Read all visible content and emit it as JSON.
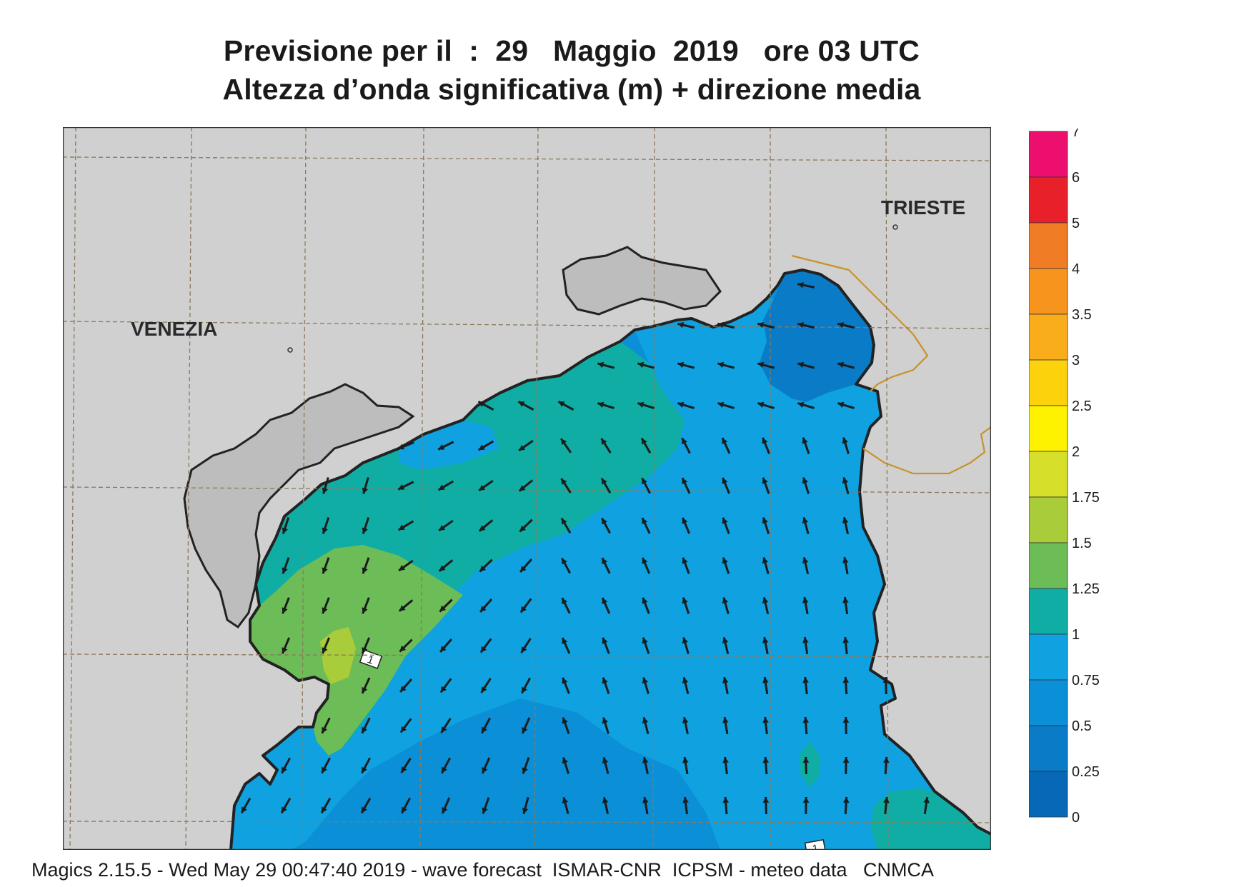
{
  "title_line1": "Previsione per il  :  29   Maggio  2019   ore 03 UTC",
  "title_line2": "Altezza d’onda significativa (m) + direzione media",
  "cities": {
    "venezia": "VENEZIA",
    "trieste": "TRIESTE"
  },
  "contour_labels": [
    "1",
    "1"
  ],
  "legend": {
    "labels": [
      "7",
      "6",
      "5",
      "4",
      "3.5",
      "3",
      "2.5",
      "2",
      "1.75",
      "1.5",
      "1.25",
      "1",
      "0.75",
      "0.5",
      "0.25",
      "0"
    ],
    "colors": [
      "#ec0f6e",
      "#e8202a",
      "#f07d25",
      "#f7941d",
      "#f9ad1b",
      "#fcd20d",
      "#fff200",
      "#d6e02a",
      "#a8cc3a",
      "#6cbd57",
      "#0fada4",
      "#0fa1e0",
      "#0b8fd6",
      "#0a7bc6",
      "#0668b6"
    ]
  },
  "colors": {
    "land": "#d0d0d0",
    "coast": "#222222",
    "border": "#c8922a",
    "arrow": "#1c1c1c",
    "sea_low": "#0b8fd6",
    "sea_mid": "#0fa1e0",
    "sea_teal": "#0fada4",
    "sea_green": "#6cbd57",
    "sea_lime": "#a8cc3a",
    "sea_dark": "#0a7bc6"
  },
  "footer": "Magics 2.15.5 - Wed May 29 00:47:40 2019 - wave forecast  ISMAR-CNR  ICPSM - meteo data   CNMCA"
}
